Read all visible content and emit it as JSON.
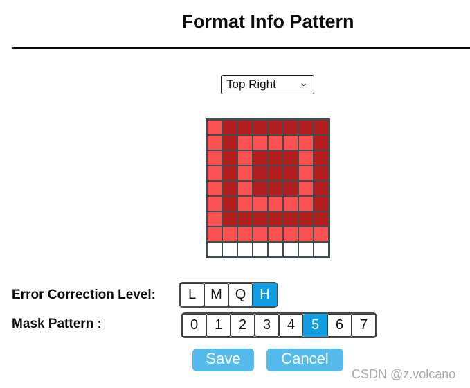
{
  "title": "Format Info Pattern",
  "dropdown": {
    "selected": "Top Right",
    "options": [
      "Top Right"
    ]
  },
  "grid": {
    "columns": 8,
    "rows_count": 9,
    "rows": [
      "LDDDDDDD",
      "LDLLLLLD",
      "LDLDDDLD",
      "LDLDDDLD",
      "LDLDDDLD",
      "LDLLLLLD",
      "LDDDDDDD",
      "LLLLLLLL",
      "WWWWWWWW"
    ],
    "legend": {
      "D": "dark module",
      "L": "light module",
      "W": "empty module"
    }
  },
  "controls": {
    "ec": {
      "label": "Error Correction Level:",
      "options": [
        "L",
        "M",
        "Q",
        "H"
      ],
      "selected": "H"
    },
    "mask": {
      "label": "Mask Pattern :",
      "options": [
        "0",
        "1",
        "2",
        "3",
        "4",
        "5",
        "6",
        "7"
      ],
      "selected": "5"
    }
  },
  "actions": {
    "save": "Save",
    "cancel": "Cancel"
  },
  "watermark": "CSDN @z.volcano",
  "icons": {
    "dropdown_chevron": "⌄"
  },
  "colors": {
    "selected_blue": "#109de2",
    "action_blue": "#55bbec",
    "cell_dark": "#b11c1c",
    "cell_light": "#fc5252",
    "grid_line": "#414b52"
  }
}
